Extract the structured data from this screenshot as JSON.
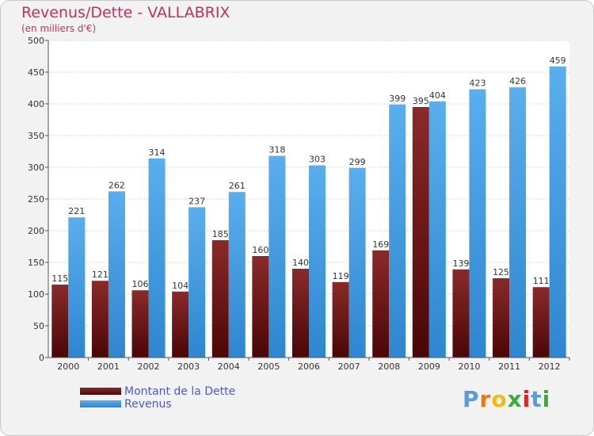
{
  "header": {
    "title": "Revenus/Dette - VALLABRIX",
    "subtitle": "(en milliers d'€)"
  },
  "legend": {
    "items": [
      {
        "label": "Montant de la Dette",
        "color": "#6b0d0d"
      },
      {
        "label": "Revenus",
        "color": "#3d9be6"
      }
    ]
  },
  "logo": {
    "letters": [
      "P",
      "r",
      "o",
      "x",
      "i",
      "t",
      "i"
    ],
    "colors": [
      "#5a9be0",
      "#e87a1a",
      "#f0b81a",
      "#3fa83f",
      "#d02828",
      "#5a9be0",
      "#3fa83f"
    ]
  },
  "chart_data": {
    "type": "bar",
    "title": "Revenus/Dette - VALLABRIX",
    "subtitle": "(en milliers d'€)",
    "xlabel": "",
    "ylabel": "",
    "ylim": [
      0,
      500
    ],
    "yticks": [
      0,
      50,
      100,
      150,
      200,
      250,
      300,
      350,
      400,
      450,
      500
    ],
    "grid": true,
    "legend_position": "bottom-left",
    "categories": [
      "2000",
      "2001",
      "2002",
      "2003",
      "2004",
      "2005",
      "2006",
      "2007",
      "2008",
      "2009",
      "2010",
      "2011",
      "2012"
    ],
    "series": [
      {
        "name": "Montant de la Dette",
        "values": [
          115,
          121,
          106,
          104,
          185,
          160,
          140,
          119,
          169,
          395,
          139,
          125,
          111
        ]
      },
      {
        "name": "Revenus",
        "values": [
          221,
          262,
          314,
          237,
          261,
          318,
          303,
          299,
          399,
          404,
          423,
          426,
          459
        ]
      }
    ]
  }
}
